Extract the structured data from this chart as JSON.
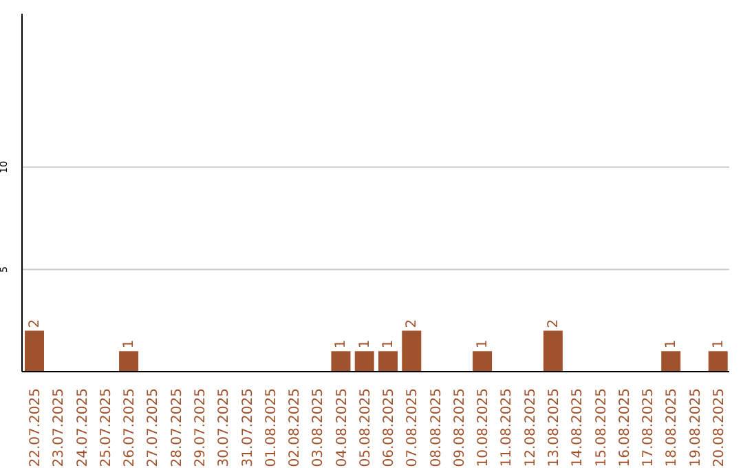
{
  "chart_data": {
    "type": "bar",
    "categories": [
      "22.07.2025",
      "23.07.2025",
      "24.07.2025",
      "25.07.2025",
      "26.07.2025",
      "27.07.2025",
      "28.07.2025",
      "29.07.2025",
      "30.07.2025",
      "31.07.2025",
      "01.08.2025",
      "02.08.2025",
      "03.08.2025",
      "04.08.2025",
      "05.08.2025",
      "06.08.2025",
      "07.08.2025",
      "08.08.2025",
      "09.08.2025",
      "10.08.2025",
      "11.08.2025",
      "12.08.2025",
      "13.08.2025",
      "14.08.2025",
      "15.08.2025",
      "16.08.2025",
      "17.08.2025",
      "18.08.2025",
      "19.08.2025",
      "20.08.2025"
    ],
    "values": [
      2,
      0,
      0,
      0,
      1,
      0,
      0,
      0,
      0,
      0,
      0,
      0,
      0,
      1,
      1,
      1,
      2,
      0,
      0,
      1,
      0,
      0,
      2,
      0,
      0,
      0,
      0,
      1,
      0,
      1
    ],
    "value_labels": [
      "2",
      null,
      null,
      null,
      "1",
      null,
      null,
      null,
      null,
      null,
      null,
      null,
      null,
      "1",
      "1",
      "1",
      "2",
      null,
      null,
      "1",
      null,
      null,
      "2",
      null,
      null,
      null,
      null,
      "1",
      null,
      "1"
    ],
    "color": "#a0522d",
    "ylim": [
      0,
      17.5
    ],
    "yticks": [
      5,
      10
    ],
    "grid": "y"
  }
}
